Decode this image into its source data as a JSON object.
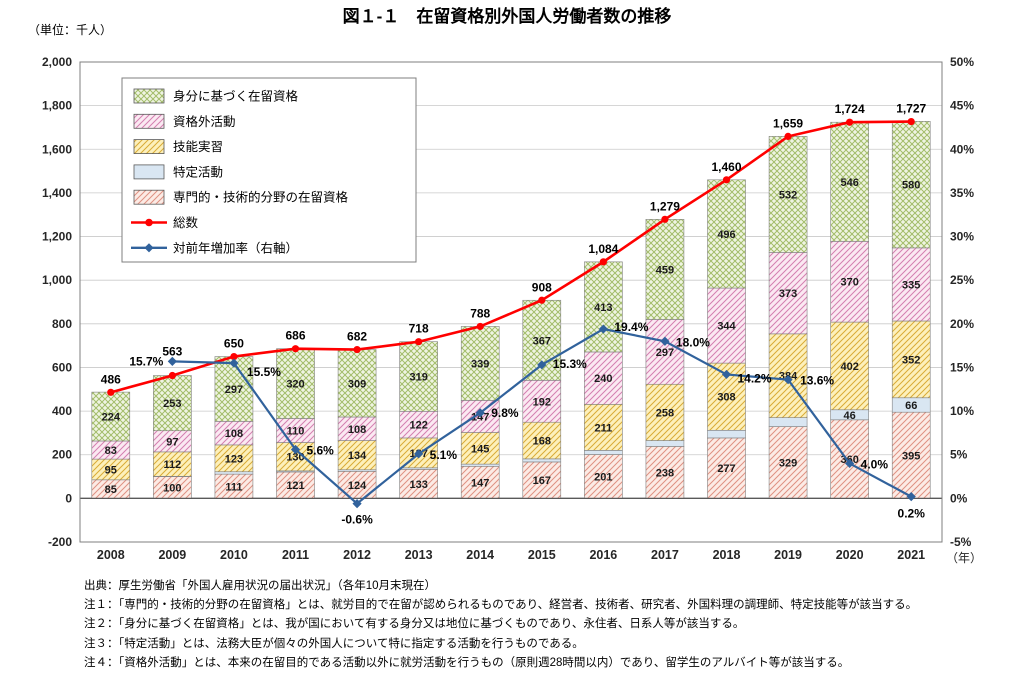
{
  "chart_data": {
    "type": "combo",
    "subtype": "stacked-bar-with-lines",
    "title": "図１-１　在留資格別外国人労働者数の推移",
    "unit_label": "（単位：千人）",
    "x_axis_suffix": "（年）",
    "categories": [
      "2008",
      "2009",
      "2010",
      "2011",
      "2012",
      "2013",
      "2014",
      "2015",
      "2016",
      "2017",
      "2018",
      "2019",
      "2020",
      "2021"
    ],
    "left_axis": {
      "min": -200,
      "max": 2000,
      "step": 200,
      "tick_labels": [
        "2,000",
        "1,800",
        "1,600",
        "1,400",
        "1,200",
        "1,000",
        "800",
        "600",
        "400",
        "200",
        "0",
        "-200"
      ]
    },
    "right_axis": {
      "min": -5,
      "max": 50,
      "step": 5,
      "tick_labels": [
        "50%",
        "45%",
        "40%",
        "35%",
        "30%",
        "25%",
        "20%",
        "15%",
        "10%",
        "5%",
        "0%",
        "-5%"
      ]
    },
    "grid": true,
    "legend_position": "top-left-inside",
    "bar_series": [
      {
        "name": "専門的・技術的分野の在留資格",
        "fill": "#fcebe5",
        "hatch": "diag",
        "hatch_color": "#df9182",
        "values": [
          85,
          100,
          111,
          121,
          124,
          133,
          147,
          167,
          201,
          238,
          277,
          329,
          360,
          395
        ],
        "show_labels": "all"
      },
      {
        "name": "特定活動",
        "fill": "#d9e6f2",
        "hatch": "none",
        "hatch_color": "",
        "values": [
          0,
          1,
          11,
          5,
          7,
          7,
          10,
          14,
          19,
          27,
          35,
          41,
          46,
          66
        ],
        "show_labels": "some",
        "labeled_indices": [
          12,
          13
        ]
      },
      {
        "name": "技能実習",
        "fill": "#fdf0bb",
        "hatch": "diag",
        "hatch_color": "#d9ab35",
        "values": [
          95,
          112,
          123,
          130,
          134,
          137,
          145,
          168,
          211,
          258,
          308,
          384,
          402,
          352
        ],
        "show_labels": "all"
      },
      {
        "name": "資格外活動",
        "fill": "#fbe9f2",
        "hatch": "diag",
        "hatch_color": "#d47fb0",
        "values": [
          83,
          97,
          108,
          110,
          108,
          122,
          147,
          192,
          240,
          297,
          344,
          373,
          370,
          335
        ],
        "show_labels": "all"
      },
      {
        "name": "身分に基づく在留資格",
        "fill": "#eff4e2",
        "hatch": "cross",
        "hatch_color": "#a3bd6a",
        "values": [
          224,
          253,
          297,
          320,
          309,
          319,
          339,
          367,
          413,
          459,
          496,
          532,
          546,
          580
        ],
        "show_labels": "all"
      }
    ],
    "total_series": {
      "name": "総数",
      "color": "#ff0000",
      "values": [
        486,
        563,
        650,
        686,
        682,
        718,
        788,
        908,
        1084,
        1279,
        1460,
        1659,
        1724,
        1727
      ],
      "labels": [
        "486",
        "563",
        "650",
        "686",
        "682",
        "718",
        "788",
        "908",
        "1,084",
        "1,279",
        "1,460",
        "1,659",
        "1,724",
        "1,727"
      ]
    },
    "growth_series": {
      "name": "対前年増加率（右軸）",
      "color": "#31629c",
      "values": [
        null,
        15.7,
        15.5,
        5.6,
        -0.6,
        5.1,
        9.8,
        15.3,
        19.4,
        18.0,
        14.2,
        13.6,
        4.0,
        0.2
      ],
      "labels": [
        null,
        "15.7%",
        "15.5%",
        "5.6%",
        "-0.6%",
        "5.1%",
        "9.8%",
        "15.3%",
        "19.4%",
        "18.0%",
        "14.2%",
        "13.6%",
        "4.0%",
        "0.2%"
      ]
    }
  },
  "notes": [
    "出典：厚生労働省「外国人雇用状況の届出状況」（各年10月末現在）",
    "注１：「専門的・技術的分野の在留資格」とは、就労目的で在留が認められるものであり、経営者、技術者、研究者、外国料理の調理師、特定技能等が該当する。",
    "注２：「身分に基づく在留資格」とは、我が国において有する身分又は地位に基づくものであり、永住者、日系人等が該当する。",
    "注３：「特定活動」とは、法務大臣が個々の外国人について特に指定する活動を行うものである。",
    "注４：「資格外活動」とは、本来の在留目的である活動以外に就労活動を行うもの（原則週28時間以内）であり、留学生のアルバイト等が該当する。"
  ]
}
